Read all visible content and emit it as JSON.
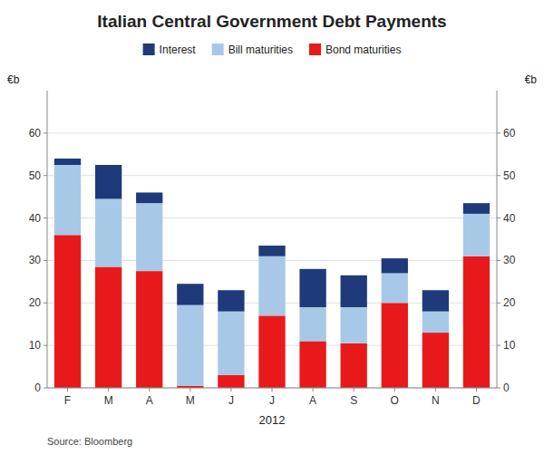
{
  "chart_data": {
    "type": "bar",
    "stacked": true,
    "title": "Italian Central Government Debt Payments",
    "xlabel": "2012",
    "ylabel": "€b",
    "y2label": "€b",
    "annotations": [
      "Source: Bloomberg"
    ],
    "categories": [
      "F",
      "M",
      "A",
      "M",
      "J",
      "J",
      "A",
      "S",
      "O",
      "N",
      "D"
    ],
    "series": [
      {
        "name": "Bond maturities",
        "color": "#e8191a",
        "values": [
          36.0,
          28.5,
          27.5,
          0.5,
          3.0,
          17.0,
          11.0,
          10.5,
          20.0,
          13.0,
          31.0
        ]
      },
      {
        "name": "Bill maturities",
        "color": "#a8c8e8",
        "values": [
          16.5,
          16.0,
          16.0,
          19.0,
          15.0,
          14.0,
          8.0,
          8.5,
          7.0,
          5.0,
          10.0
        ]
      },
      {
        "name": "Interest",
        "color": "#1e3a7a",
        "values": [
          1.5,
          8.0,
          2.5,
          5.0,
          5.0,
          2.5,
          9.0,
          7.5,
          3.5,
          5.0,
          2.5
        ]
      }
    ],
    "ylim": [
      0,
      70
    ],
    "yticks": [
      0,
      10,
      20,
      30,
      40,
      50,
      60
    ],
    "y2lim": [
      0,
      70
    ],
    "y2ticks": [
      0,
      10,
      20,
      30,
      40,
      50,
      60
    ],
    "grid": true,
    "legend": "top"
  }
}
